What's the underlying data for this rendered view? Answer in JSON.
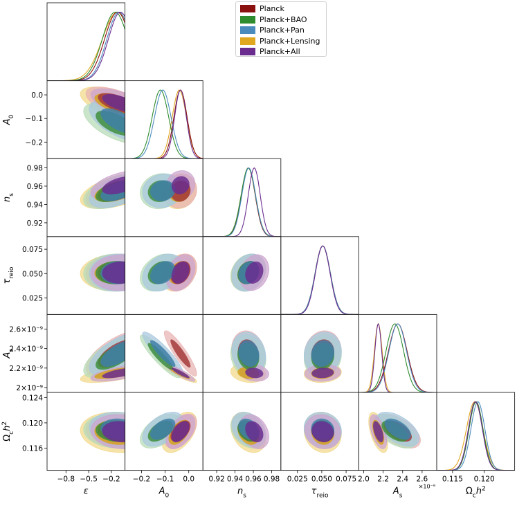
{
  "legend": {
    "items": [
      {
        "name": "Planck",
        "color": "#8b1010"
      },
      {
        "name": "Planck+BAO",
        "color": "#2e8b2e"
      },
      {
        "name": "Planck+Pan",
        "color": "#4a8bbd"
      },
      {
        "name": "Planck+Lensing",
        "color": "#e0a720"
      },
      {
        "name": "Planck+All",
        "color": "#6a2d8f"
      }
    ]
  },
  "chart_data": {
    "type": "corner",
    "series": [
      "Planck",
      "Planck+BAO",
      "Planck+Pan",
      "Planck+Lensing",
      "Planck+All"
    ],
    "parameters": [
      {
        "key": "eps",
        "label": "ε",
        "range": [
          -1.05,
          -0.02
        ],
        "ticks": [
          -0.8,
          -0.5,
          -0.2
        ],
        "ticklabels": [
          "−0.8",
          "−0.5",
          "−0.2"
        ]
      },
      {
        "key": "A0",
        "label": "A₀",
        "range": [
          -0.27,
          0.06
        ],
        "ticks": [
          -0.2,
          -0.1,
          0.0
        ],
        "ticklabels": [
          "−0.2",
          "−0.1",
          "0.0"
        ]
      },
      {
        "key": "ns",
        "label": "nₛ",
        "range": [
          0.905,
          0.99
        ],
        "ticks": [
          0.92,
          0.94,
          0.96,
          0.98
        ],
        "ticklabels": [
          "0.92",
          "0.94",
          "0.96",
          "0.98"
        ]
      },
      {
        "key": "tau",
        "label": "τ_reio",
        "range": [
          0.008,
          0.088
        ],
        "ticks": [
          0.025,
          0.05,
          0.075
        ],
        "ticklabels": [
          "0.025",
          "0.050",
          "0.075"
        ]
      },
      {
        "key": "As",
        "label": "Aₛ",
        "range": [
          1.95,
          2.75
        ],
        "ticks": [
          2.0,
          2.2,
          2.4,
          2.6
        ],
        "ticklabels": [
          "2.0",
          "2.2",
          "2.4",
          "2.6"
        ],
        "exponent": "×10⁻⁹",
        "yticklabels": [
          "2×10⁻⁹",
          "2.2×10⁻⁹",
          "2.4×10⁻⁹",
          "2.6×10⁻⁹"
        ]
      },
      {
        "key": "och2",
        "label": "Ω꜀h²",
        "range": [
          0.1125,
          0.1248
        ],
        "ticks": [
          0.115,
          0.12
        ],
        "ticklabels": [
          "0.115",
          "0.120"
        ],
        "yticks": [
          0.116,
          0.12,
          0.124
        ],
        "yticklabels": [
          "0.116",
          "0.120",
          "0.124"
        ]
      }
    ],
    "axis_labels_x": [
      "ε",
      "A0",
      "ns",
      "τreio",
      "As",
      "Ωch2"
    ],
    "axis_labels_y": [
      "A0",
      "ns",
      "τreio",
      "As",
      "Ωch2"
    ],
    "marginal_means": {
      "eps": [
        -0.12,
        -0.15,
        -0.1,
        -0.12,
        -0.08
      ],
      "A0": [
        -0.035,
        -0.12,
        -0.11,
        -0.04,
        -0.035
      ],
      "ns": [
        0.9545,
        0.9545,
        0.955,
        0.9545,
        0.961
      ],
      "tau": [
        0.051,
        0.051,
        0.051,
        0.051,
        0.051
      ],
      "As": [
        2.35,
        2.32,
        2.35,
        2.15,
        2.15
      ],
      "och2": [
        0.1187,
        0.1187,
        0.119,
        0.1185,
        0.1186
      ]
    }
  }
}
